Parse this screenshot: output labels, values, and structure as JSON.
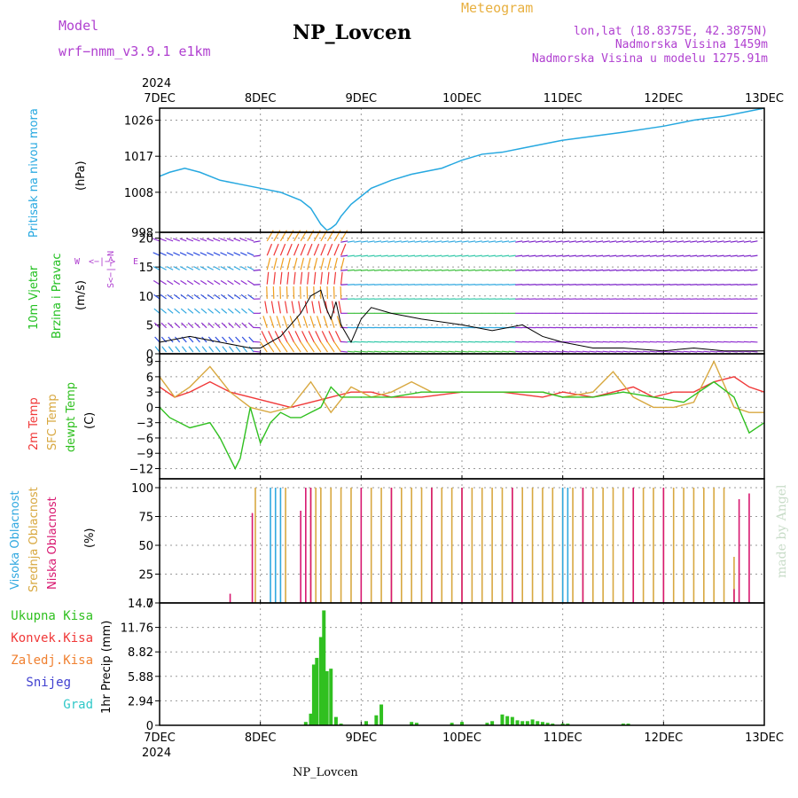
{
  "header": {
    "model_label": "Model",
    "model_value": "wrf−nmm_v3.9.1  e1km",
    "station": "NP_Lovcen",
    "meteogram": "Meteogram",
    "lonlat": "lon,lat (18.8375E, 42.3875N)",
    "altitude": "Nadmorska Visina 1459m",
    "model_altitude": "Nadmorska Visina u modelu 1275.91m",
    "year": "2024",
    "footer_station": "NP_Lovcen",
    "credit": "made by Angel"
  },
  "x_axis": {
    "labels": [
      "7DEC",
      "8DEC",
      "9DEC",
      "10DEC",
      "11DEC",
      "12DEC",
      "13DEC"
    ],
    "year_bottom": "2024"
  },
  "panels": {
    "pressure": {
      "ylabel_colored": "Pritisak na nivou mora",
      "unit": "(hPa)",
      "ticks": [
        "1026",
        "1017",
        "1008",
        "998"
      ]
    },
    "wind": {
      "ylabel_1": "10m Vjetar",
      "ylabel_2": "Brzina i Pravac",
      "unit": "(m/s)",
      "ticks": [
        "20",
        "15",
        "10",
        "5",
        "0"
      ],
      "compass_w": "W",
      "compass_e": "E",
      "compass_vert": "S<−|−>N"
    },
    "temperature": {
      "ylabel_2m": "2m Temp",
      "ylabel_sfc": "SFC Temp",
      "ylabel_dew": "dewpt Temp",
      "unit": "(C)",
      "ticks": [
        "9",
        "6",
        "3",
        "0",
        "−3",
        "−6",
        "−9",
        "−12"
      ]
    },
    "clouds": {
      "ylabel_high": "Visoka Oblacnost",
      "ylabel_mid": "Srednja Oblacnost",
      "ylabel_low": "Niska Oblacnost",
      "unit": "(%)",
      "ticks": [
        "100",
        "75",
        "50",
        "25",
        "0"
      ]
    },
    "precip": {
      "legend": [
        "Ukupna Kisa",
        "Konvek.Kisa",
        "Zaledj.Kisa",
        "Snijeg",
        "Grad"
      ],
      "ylabel": "1hr Precip (mm)",
      "ticks": [
        "14.7",
        "11.76",
        "8.82",
        "5.88",
        "2.94",
        "0"
      ]
    }
  },
  "colors": {
    "pressure": "#26a8e0",
    "wind_title": "#22c020",
    "wind_compass": "#b040d0",
    "temp2m": "#f03838",
    "sfc": "#d8a840",
    "dew": "#30c020",
    "cloud_high": "#30a8e0",
    "cloud_mid": "#d8a840",
    "cloud_low": "#d81870",
    "precip_total": "#30c020",
    "precip_conv": "#f03838",
    "precip_frz": "#f08030",
    "precip_snow": "#4040d0",
    "precip_grad": "#30c8c8",
    "header_purple": "#b040d0",
    "meteogram_orange": "#e8b040",
    "credit": "#c8dcc8"
  },
  "chart_data": [
    {
      "type": "line",
      "series": [
        {
          "name": "Pritisak na nivou mora",
          "x": [
            0,
            0.1,
            0.25,
            0.4,
            0.6,
            0.8,
            1.0,
            1.2,
            1.4,
            1.5,
            1.6,
            1.66,
            1.7,
            1.75,
            1.8,
            1.9,
            2.0,
            2.1,
            2.3,
            2.5,
            2.8,
            3.0,
            3.2,
            3.4,
            3.6,
            3.8,
            4.0,
            4.3,
            4.6,
            5.0,
            5.3,
            5.6,
            5.8,
            6.0
          ],
          "y": [
            1012,
            1013,
            1014,
            1013,
            1011,
            1010,
            1009,
            1008,
            1006,
            1004,
            1000,
            998.5,
            999,
            1000,
            1002,
            1005,
            1007,
            1009,
            1011,
            1012.5,
            1014,
            1016,
            1017.5,
            1018,
            1019,
            1020,
            1021,
            1022,
            1023,
            1024.5,
            1026,
            1027,
            1028,
            1029
          ]
        }
      ],
      "ylabel": "(hPa)",
      "yticks": [
        1026,
        1017,
        1008,
        998
      ],
      "ylim": [
        998,
        1029
      ]
    },
    {
      "type": "line",
      "series": [
        {
          "x": [
            0,
            0.3,
            0.6,
            0.9,
            1.0,
            1.2,
            1.4,
            1.5,
            1.6,
            1.65,
            1.7,
            1.75,
            1.8,
            1.9,
            2.0,
            2.1,
            2.3,
            2.6,
            3.0,
            3.3,
            3.6,
            3.8,
            4.0,
            4.3,
            4.6,
            5.0,
            5.3,
            5.6,
            6.0
          ],
          "y": [
            2,
            3,
            2,
            1,
            1,
            3,
            7,
            10,
            11,
            8,
            6,
            9,
            5,
            2,
            6,
            8,
            7,
            6,
            5,
            4,
            5,
            3,
            2,
            1,
            1,
            0.5,
            1,
            0.5,
            0.5
          ]
        }
      ],
      "ylabel": "(m/s)",
      "yticks": [
        20,
        15,
        10,
        5,
        0
      ],
      "ylim": [
        0,
        21
      ]
    },
    {
      "type": "line",
      "series": [
        {
          "name": "2m Temp",
          "x": [
            0,
            0.15,
            0.3,
            0.5,
            0.7,
            0.9,
            1.1,
            1.3,
            1.5,
            1.7,
            1.9,
            2.1,
            2.3,
            2.6,
            3.0,
            3.4,
            3.8,
            4.0,
            4.3,
            4.5,
            4.7,
            4.9,
            5.1,
            5.3,
            5.5,
            5.7,
            5.85,
            6.0
          ],
          "y": [
            4,
            2,
            3,
            5,
            3,
            2,
            1,
            0,
            1,
            2,
            3,
            3,
            2,
            2,
            3,
            3,
            2,
            3,
            2,
            3,
            4,
            2,
            3,
            3,
            5,
            6,
            4,
            3
          ]
        },
        {
          "name": "SFC Temp",
          "x": [
            0,
            0.15,
            0.3,
            0.5,
            0.7,
            0.9,
            1.1,
            1.3,
            1.5,
            1.7,
            1.9,
            2.1,
            2.3,
            2.5,
            2.7,
            3.0,
            3.4,
            3.8,
            4.0,
            4.3,
            4.5,
            4.7,
            4.9,
            5.1,
            5.3,
            5.5,
            5.7,
            5.85,
            6.0
          ],
          "y": [
            6,
            2,
            4,
            8,
            3,
            0,
            -1,
            0,
            5,
            -1,
            4,
            2,
            3,
            5,
            3,
            3,
            3,
            3,
            2,
            3,
            7,
            2,
            0,
            0,
            1,
            9,
            0,
            -1,
            -1
          ]
        },
        {
          "name": "dewpt Temp",
          "x": [
            0,
            0.1,
            0.3,
            0.5,
            0.6,
            0.7,
            0.75,
            0.8,
            0.9,
            1.0,
            1.1,
            1.2,
            1.3,
            1.4,
            1.5,
            1.6,
            1.7,
            1.8,
            2.0,
            2.3,
            2.6,
            3.0,
            3.4,
            3.8,
            4.0,
            4.3,
            4.6,
            4.9,
            5.2,
            5.5,
            5.7,
            5.85,
            6.0
          ],
          "y": [
            0,
            -2,
            -4,
            -3,
            -6,
            -10,
            -12,
            -10,
            0,
            -7,
            -3,
            -1,
            -2,
            -2,
            -1,
            0,
            4,
            2,
            2,
            2,
            3,
            3,
            3,
            3,
            2,
            2,
            3,
            2,
            1,
            5,
            2,
            -5,
            -3
          ]
        }
      ],
      "ylabel": "(C)",
      "yticks": [
        9,
        6,
        3,
        0,
        -3,
        -6,
        -9,
        -12
      ],
      "ylim": [
        -14,
        10.5
      ]
    },
    {
      "type": "bar",
      "series": [
        {
          "name": "Visoka Oblacnost",
          "x": [
            1.1,
            1.15,
            1.2,
            4.0,
            4.05
          ],
          "values": [
            100,
            100,
            100,
            100,
            100
          ]
        },
        {
          "name": "Srednja Oblacnost",
          "x": [
            0.95,
            1.25,
            1.5,
            1.55,
            1.6,
            1.7,
            1.8,
            1.9,
            2.1,
            2.2,
            2.3,
            2.4,
            2.5,
            2.6,
            2.7,
            2.8,
            2.9,
            3.0,
            3.1,
            3.2,
            3.3,
            3.4,
            3.5,
            3.6,
            3.7,
            3.8,
            3.9,
            4.0,
            4.1,
            4.2,
            4.3,
            4.4,
            4.5,
            4.6,
            4.7,
            4.8,
            4.9,
            5.0,
            5.1,
            5.2,
            5.3,
            5.4,
            5.5,
            5.6,
            5.7,
            5.8,
            5.9
          ],
          "values": [
            100,
            100,
            100,
            100,
            100,
            100,
            100,
            100,
            100,
            100,
            100,
            100,
            100,
            100,
            100,
            100,
            100,
            100,
            100,
            100,
            100,
            100,
            100,
            100,
            100,
            100,
            100,
            100,
            100,
            100,
            100,
            100,
            100,
            100,
            100,
            100,
            100,
            100,
            100,
            100,
            100,
            100,
            100,
            100,
            40,
            0,
            0
          ]
        },
        {
          "name": "Niska Oblacnost",
          "x": [
            0.7,
            0.92,
            1.4,
            1.45,
            1.5,
            2.0,
            2.3,
            2.7,
            3.0,
            3.5,
            4.2,
            4.7,
            5.0,
            5.7,
            5.75,
            5.85,
            5.9
          ],
          "values": [
            8,
            78,
            80,
            100,
            100,
            100,
            100,
            100,
            100,
            100,
            100,
            100,
            100,
            12,
            90,
            95,
            0
          ]
        }
      ],
      "ylabel": "(%)",
      "yticks": [
        100,
        75,
        50,
        25,
        0
      ],
      "ylim": [
        0,
        100
      ]
    },
    {
      "type": "bar",
      "series": [
        {
          "name": "Ukupna Kisa",
          "x": [
            1.45,
            1.5,
            1.53,
            1.56,
            1.6,
            1.63,
            1.66,
            1.7,
            1.75,
            1.8,
            2.05,
            2.15,
            2.2,
            2.5,
            2.55,
            2.9,
            3.0,
            3.25,
            3.3,
            3.4,
            3.45,
            3.5,
            3.55,
            3.6,
            3.65,
            3.7,
            3.75,
            3.8,
            3.85,
            3.9,
            4.0,
            4.05,
            4.6,
            4.65
          ],
          "values": [
            0.4,
            1.4,
            7.3,
            8.1,
            10.6,
            13.8,
            6.5,
            6.8,
            1.0,
            0.2,
            0.5,
            1.2,
            2.5,
            0.4,
            0.3,
            0.3,
            0.4,
            0.3,
            0.5,
            1.3,
            1.1,
            1.0,
            0.6,
            0.5,
            0.5,
            0.7,
            0.5,
            0.4,
            0.3,
            0.2,
            0.2,
            0.2,
            0.2,
            0.2
          ]
        }
      ],
      "ylabel": "1hr Precip (mm)",
      "yticks": [
        14.7,
        11.76,
        8.82,
        5.88,
        2.94,
        0
      ],
      "ylim": [
        0,
        14.7
      ]
    }
  ]
}
